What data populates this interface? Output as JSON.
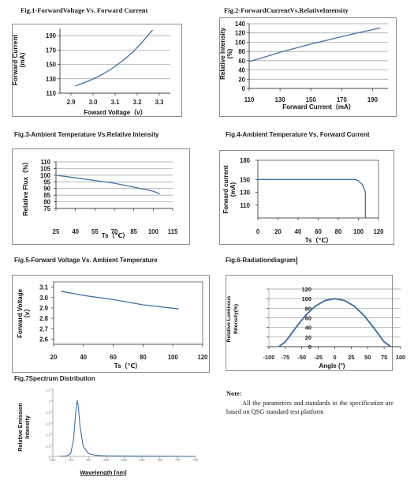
{
  "figures": [
    {
      "id": "fig1",
      "title": "Fig.1-ForwardVoltage Vs. Forward Current"
    },
    {
      "id": "fig2",
      "title": "Fig.2-ForwardCurrentVs.RelativeIntensity"
    },
    {
      "id": "fig3",
      "title": "Fig.3-Ambient Temperature Vs.Relative Intensity"
    },
    {
      "id": "fig4",
      "title": "Fig.4-Ambient Temperature Vs. Forward Current"
    },
    {
      "id": "fig5",
      "title": "Fig.5-Forward Voltage Vs. Ambient Temperature"
    },
    {
      "id": "fig6",
      "title": "Fig.6-Radiationdiagram"
    },
    {
      "id": "fig7",
      "title": "Fig.7Spectrum Distribution"
    }
  ],
  "note": {
    "title": "Note:",
    "body": "All the parameters and standards in the specification are based on QSG standard test platform"
  },
  "chart_data": [
    {
      "id": "fig1",
      "type": "line",
      "title": "Fig.1-ForwardVoltage Vs. Forward Current",
      "xlabel": "Foward Voltage（v）",
      "ylabel": "Forward Current (mA)",
      "xlim": [
        2.85,
        3.35
      ],
      "ylim": [
        110,
        200
      ],
      "xticks": [
        "2.9",
        "3.0",
        "3.1",
        "3.2",
        "3.3"
      ],
      "yticks": [
        "110",
        "130",
        "150",
        "170",
        "190"
      ],
      "x": [
        2.92,
        2.98,
        3.03,
        3.08,
        3.13,
        3.18,
        3.22,
        3.27
      ],
      "y": [
        120,
        127,
        134,
        143,
        154,
        167,
        180,
        198
      ]
    },
    {
      "id": "fig2",
      "type": "line",
      "title": "Fig.2-ForwardCurrentVs.RelativeIntensity",
      "xlabel": "Forward Current（mA）",
      "ylabel": "Relative Intensity (%)",
      "xlim": [
        110,
        200
      ],
      "ylim": [
        0,
        140
      ],
      "xticks": [
        "110",
        "130",
        "150",
        "170",
        "190"
      ],
      "yticks": [
        "0",
        "20",
        "40",
        "60",
        "80",
        "100",
        "120",
        "140"
      ],
      "x": [
        110,
        120,
        130,
        140,
        150,
        160,
        170,
        180,
        190,
        195
      ],
      "y": [
        58,
        68,
        78,
        87,
        96,
        104,
        112,
        120,
        127,
        131
      ]
    },
    {
      "id": "fig3",
      "type": "line",
      "title": "Fig.3-Ambient Temperature Vs.Relative Intensity",
      "xlabel": "Ts（℃）",
      "ylabel": "Relative Flux（%）",
      "xlim": [
        25,
        115
      ],
      "ylim": [
        75,
        110
      ],
      "xticks": [
        "25",
        "40",
        "55",
        "70",
        "85",
        "100",
        "115"
      ],
      "yticks": [
        "75",
        "80",
        "85",
        "90",
        "95",
        "100",
        "105",
        "110"
      ],
      "x": [
        25,
        40,
        55,
        70,
        85,
        100,
        105
      ],
      "y": [
        100,
        98,
        96,
        94,
        91,
        88,
        86
      ]
    },
    {
      "id": "fig4",
      "type": "line",
      "title": "Fig.4-Ambient Temperature Vs. Forward Current",
      "xlabel": "Ts（℃）",
      "ylabel": "Forward current (mA)",
      "xlim": [
        0,
        120
      ],
      "ylim": [
        90,
        180
      ],
      "xticks": [
        "0",
        "20",
        "40",
        "60",
        "80",
        "100",
        "120"
      ],
      "yticks": [
        "110",
        "130",
        "150",
        "180"
      ],
      "x": [
        0,
        20,
        40,
        60,
        80,
        97,
        100,
        104,
        107,
        107
      ],
      "y": [
        150,
        150,
        150,
        150,
        150,
        150,
        148,
        142,
        130,
        90
      ]
    },
    {
      "id": "fig5",
      "type": "line",
      "title": "Fig.5-Forward Voltage Vs. Ambient Temperature",
      "xlabel": "Ts（℃）",
      "ylabel": "Forward Voltage（v）",
      "xlim": [
        20,
        120
      ],
      "ylim": [
        2.55,
        3.15
      ],
      "xticks": [
        "20",
        "40",
        "60",
        "80",
        "100",
        "120"
      ],
      "yticks": [
        "2.6",
        "2.7",
        "2.8",
        "2.9",
        "3.0",
        "3.1"
      ],
      "x": [
        25,
        40,
        60,
        80,
        104
      ],
      "y": [
        3.06,
        3.02,
        2.98,
        2.93,
        2.89
      ]
    },
    {
      "id": "fig6",
      "type": "line",
      "title": "Fig.6-Radiationdiagram",
      "xlabel": "Angle (°)",
      "ylabel": "Relative Luminous Intensity(%)",
      "xlim": [
        -100,
        100
      ],
      "ylim": [
        0,
        120
      ],
      "xticks": [
        "-100",
        "-75",
        "-50",
        "-25",
        "0",
        "25",
        "50",
        "75",
        "100"
      ],
      "yticks": [
        "0",
        "20",
        "40",
        "60",
        "80",
        "100",
        "120"
      ],
      "x": [
        -85,
        -75,
        -60,
        -45,
        -30,
        -15,
        0,
        15,
        30,
        45,
        60,
        75,
        85
      ],
      "y": [
        0,
        10,
        38,
        64,
        84,
        96,
        100,
        96,
        84,
        64,
        38,
        10,
        0
      ]
    },
    {
      "id": "fig7",
      "type": "line",
      "title": "Fig.7Spectrum Distribution",
      "xlabel": "Wavelength [nm]",
      "ylabel": "Relative Emission Intensity",
      "xlim": [
        380,
        780
      ],
      "ylim": [
        0,
        1.2
      ],
      "xticks": [
        "380",
        "430",
        "480",
        "530",
        "580",
        "630",
        "680",
        "730",
        "780"
      ],
      "yticks": [
        "0",
        "0.2",
        "0.4",
        "0.6",
        "0.8",
        "1",
        "1.2"
      ],
      "x": [
        400,
        420,
        430,
        438,
        445,
        448,
        451,
        456,
        465,
        480,
        500,
        530,
        600,
        700,
        780
      ],
      "y": [
        0,
        0.01,
        0.05,
        0.3,
        0.85,
        1.0,
        0.92,
        0.55,
        0.18,
        0.05,
        0.02,
        0.01,
        0.005,
        0.003,
        0
      ]
    }
  ]
}
